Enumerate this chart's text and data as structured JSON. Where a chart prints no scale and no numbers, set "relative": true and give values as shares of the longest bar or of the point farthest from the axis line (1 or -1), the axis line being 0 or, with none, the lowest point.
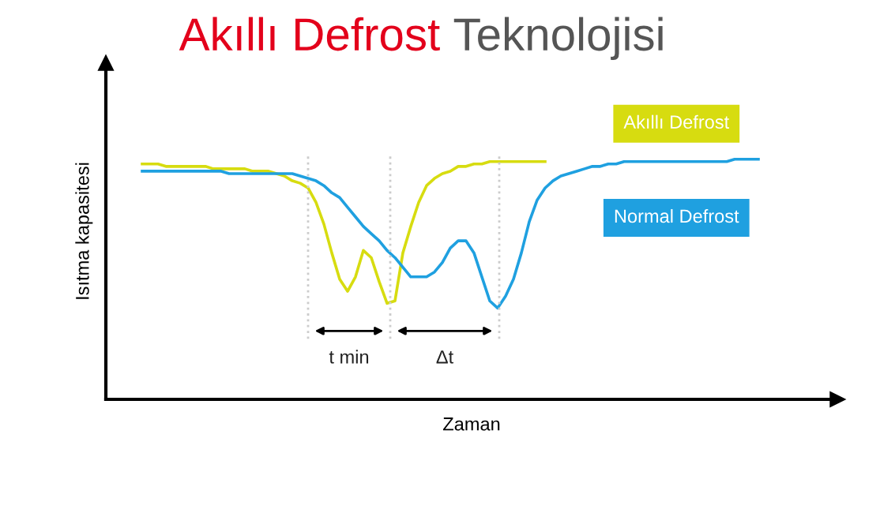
{
  "chart_data": {
    "type": "line",
    "title": "Akıllı Defrost Teknolojisi",
    "xlabel": "Zaman",
    "ylabel": "Isıtma kapasitesi",
    "relative": true,
    "legend": "top right",
    "grid": false,
    "marker": "none",
    "line_style": "solid",
    "categories": [
      null,
      null,
      null,
      null,
      null,
      null,
      null,
      null,
      null,
      null,
      null,
      null,
      null,
      null,
      null,
      null,
      null,
      null,
      null,
      null,
      null,
      null,
      null,
      null,
      null,
      null,
      null,
      null,
      null,
      null,
      null,
      null,
      null,
      null,
      null,
      null,
      null,
      null,
      null,
      null,
      null,
      null,
      null,
      null,
      null,
      null,
      null,
      null,
      null,
      null,
      null,
      null,
      null,
      null,
      null,
      null,
      null,
      null,
      null,
      null,
      null,
      null,
      null,
      null,
      null,
      null,
      null,
      null,
      null,
      null,
      null,
      null,
      null,
      null,
      null,
      null,
      null,
      null,
      null
    ],
    "series": [
      {
        "name": "Akıllı Defrost",
        "color": "#d7dc10",
        "values": [
          0.98,
          0.98,
          0.98,
          0.97,
          0.97,
          0.97,
          0.97,
          0.97,
          0.97,
          0.96,
          0.96,
          0.96,
          0.96,
          0.96,
          0.95,
          0.95,
          0.95,
          0.94,
          0.93,
          0.91,
          0.9,
          0.88,
          0.82,
          0.73,
          0.61,
          0.5,
          0.45,
          0.51,
          0.62,
          0.59,
          0.49,
          0.4,
          0.41,
          0.61,
          0.72,
          0.82,
          0.89,
          0.92,
          0.94,
          0.95,
          0.97,
          0.97,
          0.98,
          0.98,
          0.99,
          0.99,
          0.99,
          0.99,
          0.99,
          0.99,
          0.99,
          0.99,
          null,
          null,
          null,
          null,
          null,
          null,
          null,
          null,
          null,
          null,
          null,
          null,
          null,
          null,
          null,
          null,
          null,
          null,
          null,
          null,
          null,
          null,
          null,
          null,
          null,
          null,
          null
        ]
      },
      {
        "name": "Normal Defrost",
        "color": "#1fa0e0",
        "values": [
          0.95,
          0.95,
          0.95,
          0.95,
          0.95,
          0.95,
          0.95,
          0.95,
          0.95,
          0.95,
          0.95,
          0.94,
          0.94,
          0.94,
          0.94,
          0.94,
          0.94,
          0.94,
          0.94,
          0.94,
          0.93,
          0.92,
          0.91,
          0.89,
          0.86,
          0.84,
          0.8,
          0.76,
          0.72,
          0.69,
          0.66,
          0.62,
          0.59,
          0.55,
          0.51,
          0.51,
          0.51,
          0.53,
          0.57,
          0.63,
          0.66,
          0.66,
          0.61,
          0.51,
          0.41,
          0.38,
          0.43,
          0.5,
          0.61,
          0.74,
          0.83,
          0.88,
          0.91,
          0.93,
          0.94,
          0.95,
          0.96,
          0.97,
          0.97,
          0.98,
          0.98,
          0.99,
          0.99,
          0.99,
          0.99,
          0.99,
          0.99,
          0.99,
          0.99,
          0.99,
          0.99,
          0.99,
          0.99,
          0.99,
          0.99,
          1.0,
          1.0,
          1.0,
          1.0
        ]
      }
    ],
    "annotations": [
      "t min",
      "Δt"
    ]
  }
}
